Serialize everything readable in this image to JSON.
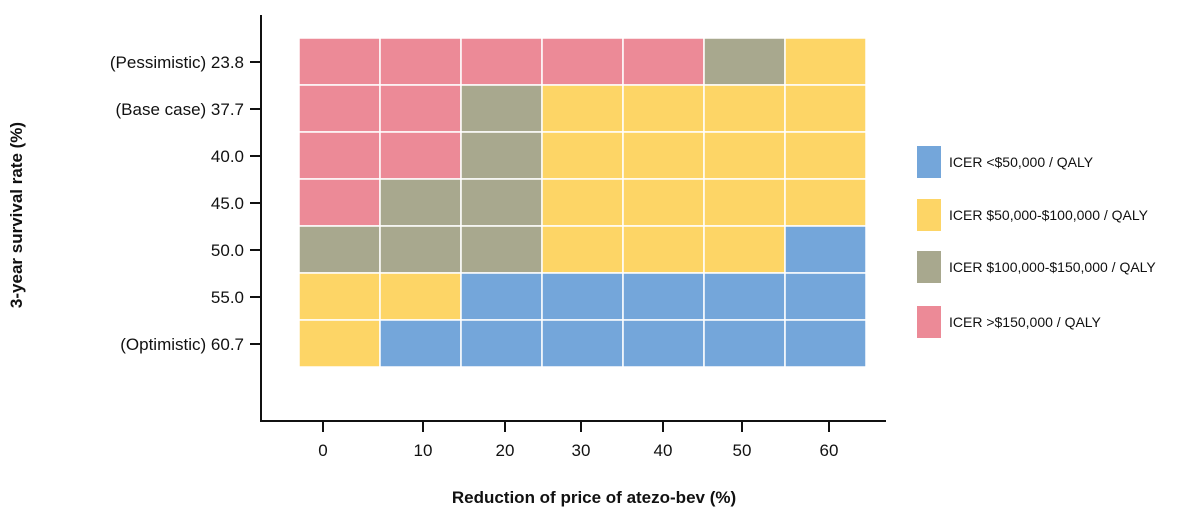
{
  "chart_data": {
    "type": "heatmap",
    "xlabel": "Reduction of price of atezo-bev (%)",
    "ylabel": "3-year survival rate (%)",
    "x_categories": [
      "0",
      "10",
      "20",
      "30",
      "40",
      "50",
      "60"
    ],
    "y_categories": [
      "(Pessimistic) 23.8",
      "(Base case) 37.7",
      "40.0",
      "45.0",
      "50.0",
      "55.0",
      "(Optimistic) 60.7"
    ],
    "legend": [
      {
        "key": "blue",
        "label": "ICER <$50,000 / QALY",
        "color": "#74a6da"
      },
      {
        "key": "yellow",
        "label": "ICER $50,000-$100,000 / QALY",
        "color": "#fdd566"
      },
      {
        "key": "gray",
        "label": "ICER $100,000-$150,000 / QALY",
        "color": "#a8a88e"
      },
      {
        "key": "red",
        "label": "ICER >$150,000 / QALY",
        "color": "#ec8a97"
      }
    ],
    "cells": [
      [
        "red",
        "red",
        "red",
        "red",
        "red",
        "gray",
        "yellow"
      ],
      [
        "red",
        "red",
        "gray",
        "yellow",
        "yellow",
        "yellow",
        "yellow"
      ],
      [
        "red",
        "red",
        "gray",
        "yellow",
        "yellow",
        "yellow",
        "yellow"
      ],
      [
        "red",
        "gray",
        "gray",
        "yellow",
        "yellow",
        "yellow",
        "yellow"
      ],
      [
        "gray",
        "gray",
        "gray",
        "yellow",
        "yellow",
        "yellow",
        "blue"
      ],
      [
        "yellow",
        "yellow",
        "blue",
        "blue",
        "blue",
        "blue",
        "blue"
      ],
      [
        "yellow",
        "blue",
        "blue",
        "blue",
        "blue",
        "blue",
        "blue"
      ]
    ],
    "legend_position": "right",
    "grid": false
  }
}
